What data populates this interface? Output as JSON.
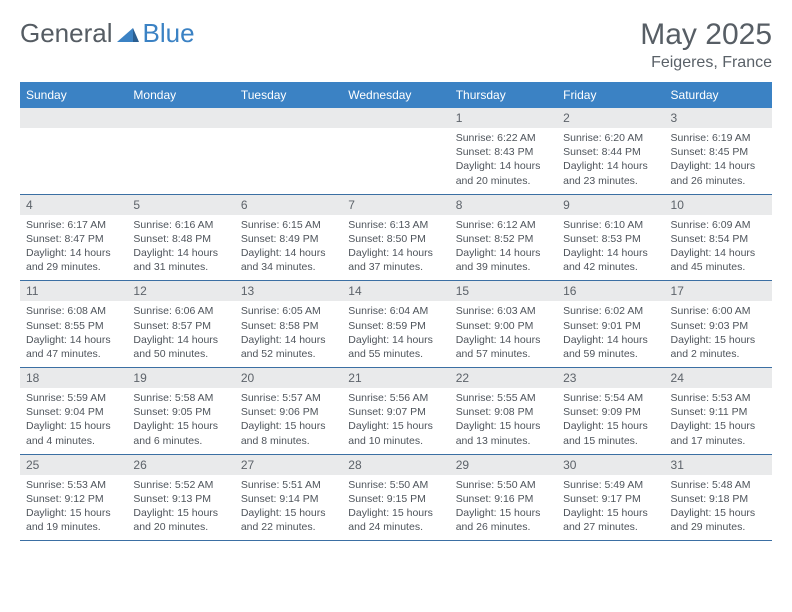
{
  "brand": {
    "part1": "General",
    "part2": "Blue"
  },
  "title": "May 2025",
  "location": "Feigeres, France",
  "colors": {
    "header_bg": "#3b82c4",
    "header_text": "#ffffff",
    "daynum_bg": "#e9eaeb",
    "text": "#4e545b",
    "cell_border": "#3b6fa3",
    "title_color": "#575e65"
  },
  "weekdays": [
    "Sunday",
    "Monday",
    "Tuesday",
    "Wednesday",
    "Thursday",
    "Friday",
    "Saturday"
  ],
  "weeks": [
    [
      {
        "empty": true
      },
      {
        "empty": true
      },
      {
        "empty": true
      },
      {
        "empty": true
      },
      {
        "num": "1",
        "sunrise": "Sunrise: 6:22 AM",
        "sunset": "Sunset: 8:43 PM",
        "daylight1": "Daylight: 14 hours",
        "daylight2": "and 20 minutes."
      },
      {
        "num": "2",
        "sunrise": "Sunrise: 6:20 AM",
        "sunset": "Sunset: 8:44 PM",
        "daylight1": "Daylight: 14 hours",
        "daylight2": "and 23 minutes."
      },
      {
        "num": "3",
        "sunrise": "Sunrise: 6:19 AM",
        "sunset": "Sunset: 8:45 PM",
        "daylight1": "Daylight: 14 hours",
        "daylight2": "and 26 minutes."
      }
    ],
    [
      {
        "num": "4",
        "sunrise": "Sunrise: 6:17 AM",
        "sunset": "Sunset: 8:47 PM",
        "daylight1": "Daylight: 14 hours",
        "daylight2": "and 29 minutes."
      },
      {
        "num": "5",
        "sunrise": "Sunrise: 6:16 AM",
        "sunset": "Sunset: 8:48 PM",
        "daylight1": "Daylight: 14 hours",
        "daylight2": "and 31 minutes."
      },
      {
        "num": "6",
        "sunrise": "Sunrise: 6:15 AM",
        "sunset": "Sunset: 8:49 PM",
        "daylight1": "Daylight: 14 hours",
        "daylight2": "and 34 minutes."
      },
      {
        "num": "7",
        "sunrise": "Sunrise: 6:13 AM",
        "sunset": "Sunset: 8:50 PM",
        "daylight1": "Daylight: 14 hours",
        "daylight2": "and 37 minutes."
      },
      {
        "num": "8",
        "sunrise": "Sunrise: 6:12 AM",
        "sunset": "Sunset: 8:52 PM",
        "daylight1": "Daylight: 14 hours",
        "daylight2": "and 39 minutes."
      },
      {
        "num": "9",
        "sunrise": "Sunrise: 6:10 AM",
        "sunset": "Sunset: 8:53 PM",
        "daylight1": "Daylight: 14 hours",
        "daylight2": "and 42 minutes."
      },
      {
        "num": "10",
        "sunrise": "Sunrise: 6:09 AM",
        "sunset": "Sunset: 8:54 PM",
        "daylight1": "Daylight: 14 hours",
        "daylight2": "and 45 minutes."
      }
    ],
    [
      {
        "num": "11",
        "sunrise": "Sunrise: 6:08 AM",
        "sunset": "Sunset: 8:55 PM",
        "daylight1": "Daylight: 14 hours",
        "daylight2": "and 47 minutes."
      },
      {
        "num": "12",
        "sunrise": "Sunrise: 6:06 AM",
        "sunset": "Sunset: 8:57 PM",
        "daylight1": "Daylight: 14 hours",
        "daylight2": "and 50 minutes."
      },
      {
        "num": "13",
        "sunrise": "Sunrise: 6:05 AM",
        "sunset": "Sunset: 8:58 PM",
        "daylight1": "Daylight: 14 hours",
        "daylight2": "and 52 minutes."
      },
      {
        "num": "14",
        "sunrise": "Sunrise: 6:04 AM",
        "sunset": "Sunset: 8:59 PM",
        "daylight1": "Daylight: 14 hours",
        "daylight2": "and 55 minutes."
      },
      {
        "num": "15",
        "sunrise": "Sunrise: 6:03 AM",
        "sunset": "Sunset: 9:00 PM",
        "daylight1": "Daylight: 14 hours",
        "daylight2": "and 57 minutes."
      },
      {
        "num": "16",
        "sunrise": "Sunrise: 6:02 AM",
        "sunset": "Sunset: 9:01 PM",
        "daylight1": "Daylight: 14 hours",
        "daylight2": "and 59 minutes."
      },
      {
        "num": "17",
        "sunrise": "Sunrise: 6:00 AM",
        "sunset": "Sunset: 9:03 PM",
        "daylight1": "Daylight: 15 hours",
        "daylight2": "and 2 minutes."
      }
    ],
    [
      {
        "num": "18",
        "sunrise": "Sunrise: 5:59 AM",
        "sunset": "Sunset: 9:04 PM",
        "daylight1": "Daylight: 15 hours",
        "daylight2": "and 4 minutes."
      },
      {
        "num": "19",
        "sunrise": "Sunrise: 5:58 AM",
        "sunset": "Sunset: 9:05 PM",
        "daylight1": "Daylight: 15 hours",
        "daylight2": "and 6 minutes."
      },
      {
        "num": "20",
        "sunrise": "Sunrise: 5:57 AM",
        "sunset": "Sunset: 9:06 PM",
        "daylight1": "Daylight: 15 hours",
        "daylight2": "and 8 minutes."
      },
      {
        "num": "21",
        "sunrise": "Sunrise: 5:56 AM",
        "sunset": "Sunset: 9:07 PM",
        "daylight1": "Daylight: 15 hours",
        "daylight2": "and 10 minutes."
      },
      {
        "num": "22",
        "sunrise": "Sunrise: 5:55 AM",
        "sunset": "Sunset: 9:08 PM",
        "daylight1": "Daylight: 15 hours",
        "daylight2": "and 13 minutes."
      },
      {
        "num": "23",
        "sunrise": "Sunrise: 5:54 AM",
        "sunset": "Sunset: 9:09 PM",
        "daylight1": "Daylight: 15 hours",
        "daylight2": "and 15 minutes."
      },
      {
        "num": "24",
        "sunrise": "Sunrise: 5:53 AM",
        "sunset": "Sunset: 9:11 PM",
        "daylight1": "Daylight: 15 hours",
        "daylight2": "and 17 minutes."
      }
    ],
    [
      {
        "num": "25",
        "sunrise": "Sunrise: 5:53 AM",
        "sunset": "Sunset: 9:12 PM",
        "daylight1": "Daylight: 15 hours",
        "daylight2": "and 19 minutes."
      },
      {
        "num": "26",
        "sunrise": "Sunrise: 5:52 AM",
        "sunset": "Sunset: 9:13 PM",
        "daylight1": "Daylight: 15 hours",
        "daylight2": "and 20 minutes."
      },
      {
        "num": "27",
        "sunrise": "Sunrise: 5:51 AM",
        "sunset": "Sunset: 9:14 PM",
        "daylight1": "Daylight: 15 hours",
        "daylight2": "and 22 minutes."
      },
      {
        "num": "28",
        "sunrise": "Sunrise: 5:50 AM",
        "sunset": "Sunset: 9:15 PM",
        "daylight1": "Daylight: 15 hours",
        "daylight2": "and 24 minutes."
      },
      {
        "num": "29",
        "sunrise": "Sunrise: 5:50 AM",
        "sunset": "Sunset: 9:16 PM",
        "daylight1": "Daylight: 15 hours",
        "daylight2": "and 26 minutes."
      },
      {
        "num": "30",
        "sunrise": "Sunrise: 5:49 AM",
        "sunset": "Sunset: 9:17 PM",
        "daylight1": "Daylight: 15 hours",
        "daylight2": "and 27 minutes."
      },
      {
        "num": "31",
        "sunrise": "Sunrise: 5:48 AM",
        "sunset": "Sunset: 9:18 PM",
        "daylight1": "Daylight: 15 hours",
        "daylight2": "and 29 minutes."
      }
    ]
  ]
}
